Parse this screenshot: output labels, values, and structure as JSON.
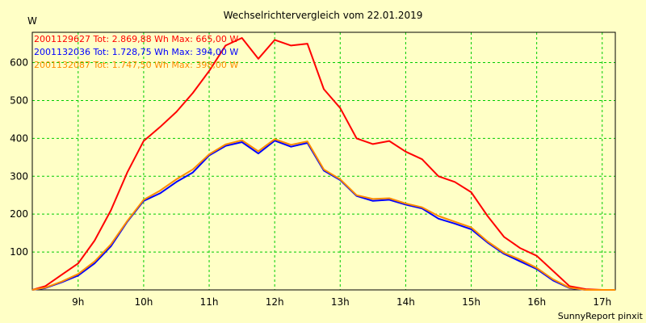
{
  "chart_data": {
    "type": "line",
    "title": "Wechselrichtervergleich vom 22.01.2019",
    "ylabel": "W",
    "xlabel": "",
    "ylim": [
      0,
      680
    ],
    "xlim": [
      8.3,
      17.2
    ],
    "grid": true,
    "legend_position": "top-left",
    "x_ticks": [
      9,
      10,
      11,
      12,
      13,
      14,
      15,
      16,
      17
    ],
    "x_tick_labels": [
      "9h",
      "10h",
      "11h",
      "12h",
      "13h",
      "14h",
      "15h",
      "16h",
      "17h"
    ],
    "y_ticks": [
      100,
      200,
      300,
      400,
      500,
      600
    ],
    "y_tick_labels": [
      "100",
      "200",
      "300",
      "400",
      "500",
      "600"
    ],
    "x": [
      8.3,
      8.5,
      8.75,
      9.0,
      9.25,
      9.5,
      9.75,
      10.0,
      10.25,
      10.5,
      10.75,
      11.0,
      11.25,
      11.5,
      11.75,
      12.0,
      12.25,
      12.5,
      12.75,
      13.0,
      13.25,
      13.5,
      13.75,
      14.0,
      14.25,
      14.5,
      14.75,
      15.0,
      15.25,
      15.5,
      15.75,
      16.0,
      16.25,
      16.5,
      16.75,
      17.0,
      17.2
    ],
    "series": [
      {
        "name": "2001129627 Tot: 2.869,88 Wh Max: 665,00 W",
        "color": "#ff0000",
        "values": [
          0,
          10,
          40,
          70,
          130,
          210,
          310,
          393,
          430,
          470,
          520,
          578,
          645,
          665,
          610,
          660,
          645,
          650,
          530,
          480,
          400,
          385,
          393,
          365,
          345,
          300,
          285,
          258,
          195,
          140,
          110,
          90,
          50,
          10,
          2,
          0,
          0
        ]
      },
      {
        "name": "2001132036 Tot: 1.728,75 Wh Max: 394,00 W",
        "color": "#0000ff",
        "values": [
          0,
          5,
          20,
          38,
          70,
          115,
          180,
          235,
          255,
          285,
          310,
          355,
          380,
          390,
          360,
          394,
          378,
          388,
          315,
          290,
          248,
          235,
          238,
          225,
          215,
          188,
          175,
          160,
          125,
          95,
          75,
          55,
          25,
          5,
          0,
          0,
          0
        ]
      },
      {
        "name": "2001132087 Tot: 1.747,50 Wh Max: 398,00 W",
        "color": "#ff8c00",
        "values": [
          0,
          6,
          22,
          42,
          75,
          120,
          182,
          238,
          262,
          292,
          318,
          358,
          384,
          395,
          366,
          398,
          383,
          392,
          318,
          292,
          250,
          240,
          242,
          228,
          218,
          195,
          180,
          165,
          128,
          98,
          80,
          58,
          28,
          6,
          0,
          0,
          0
        ]
      }
    ],
    "footer": "SunnyReport pinxit"
  },
  "colors": {
    "background": "#ffffc6",
    "grid": "#00cc00",
    "axis": "#000000"
  }
}
